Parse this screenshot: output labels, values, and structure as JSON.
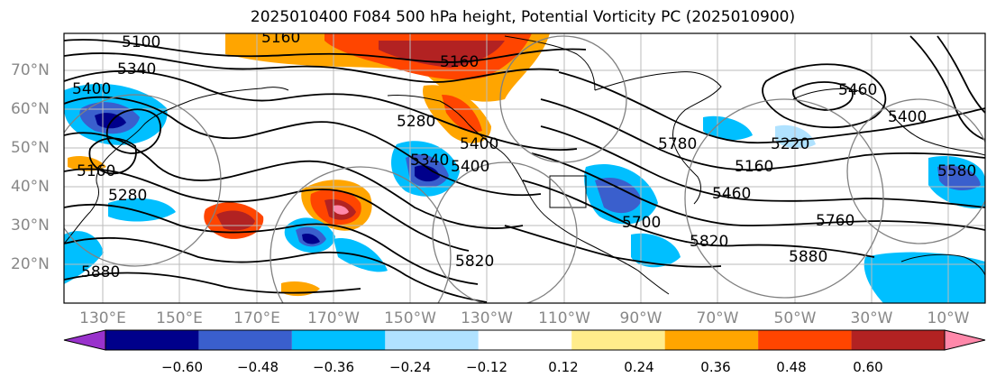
{
  "title": "2025010400 F084 500 hPa height, Potential Vorticity PC (2025010900)",
  "axes": {
    "lat_labels": [
      "70°N",
      "60°N",
      "50°N",
      "40°N",
      "30°N",
      "20°N"
    ],
    "lon_labels": [
      "130°E",
      "150°E",
      "170°E",
      "170°W",
      "150°W",
      "130°W",
      "110°W",
      "90°W",
      "70°W",
      "50°W",
      "30°W",
      "10°W"
    ]
  },
  "contour_labels": [
    "5100",
    "5160",
    "5340",
    "5400",
    "5160",
    "5280",
    "5340",
    "5400",
    "5880",
    "5160",
    "5280",
    "5400",
    "5460",
    "5220",
    "5160",
    "5780",
    "5700",
    "5760",
    "5820",
    "5880",
    "5820",
    "5400",
    "5460",
    "5580"
  ],
  "colorbar": {
    "colors": [
      "#9932cc",
      "#00008b",
      "#3a5fcd",
      "#00bfff",
      "#b0e2ff",
      "#ffffff",
      "#ffec8b",
      "#ffa500",
      "#ff4500",
      "#b22222",
      "#ff88aa"
    ],
    "ticks": [
      "−0.60",
      "−0.48",
      "−0.36",
      "−0.24",
      "−0.12",
      "0.12",
      "0.24",
      "0.36",
      "0.48",
      "0.60"
    ]
  }
}
